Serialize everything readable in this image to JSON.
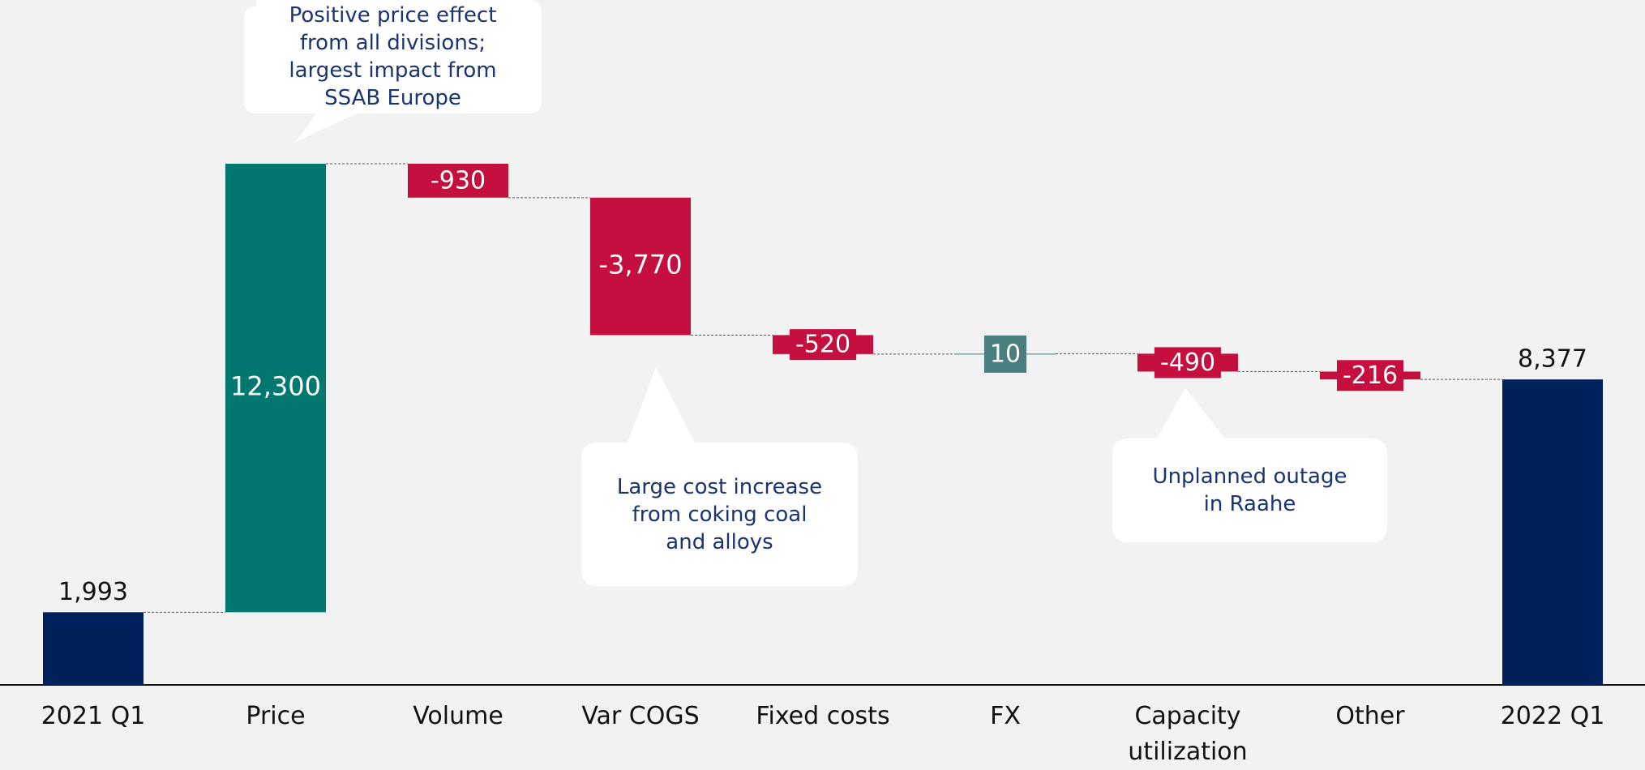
{
  "chart_data": {
    "type": "waterfall",
    "categories": [
      "2021 Q1",
      "Price",
      "Volume",
      "Var COGS",
      "Fixed costs",
      "FX",
      "Capacity utilization",
      "Other",
      "2022 Q1"
    ],
    "values": [
      1993,
      12300,
      -930,
      -3770,
      -520,
      10,
      -490,
      -216,
      8377
    ],
    "value_labels": [
      "1,993",
      "12,300",
      "-930",
      "-3,770",
      "-520",
      "10",
      "-490",
      "-216",
      "8,377"
    ],
    "colors": [
      "#00205b",
      "#00786f",
      "#c40f3f",
      "#c40f3f",
      "#c40f3f",
      "#4a7f80",
      "#c40f3f",
      "#c40f3f",
      "#00205b"
    ],
    "annotations": [
      {
        "lines": [
          "Positive price effect",
          "from all divisions;",
          "largest impact from",
          "SSAB Europe"
        ]
      },
      {
        "lines": [
          "Large cost increase",
          "from coking coal",
          "and alloys"
        ]
      },
      {
        "lines": [
          "Unplanned outage",
          "in Raahe"
        ]
      }
    ]
  }
}
